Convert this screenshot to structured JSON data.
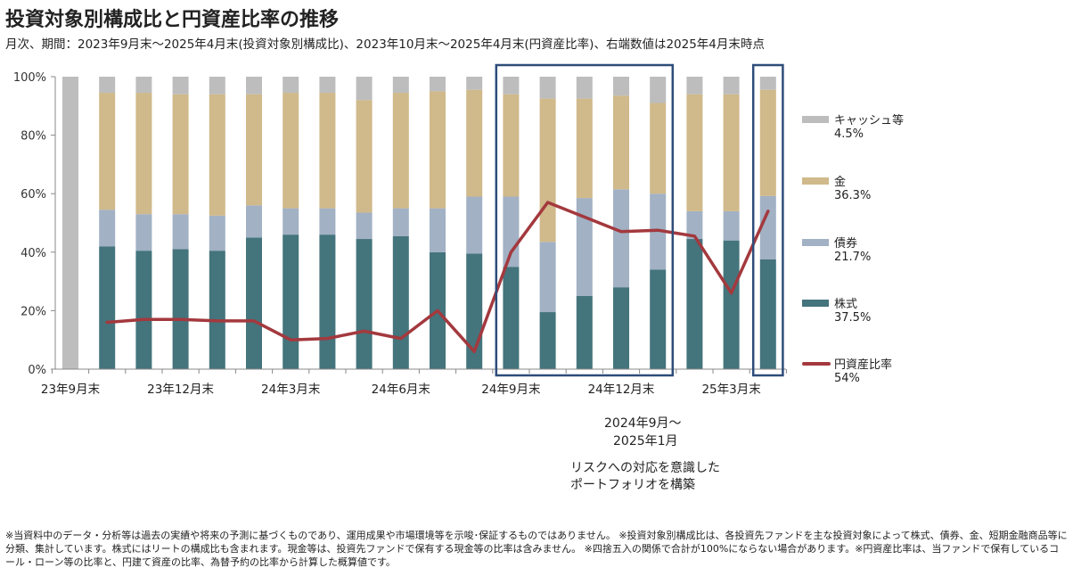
{
  "title": "投資対象別構成比と円資産比率の推移",
  "subtitle": "月次、期間：2023年9月末～2025年4月末(投資対象別構成比)、2023年10月末～2025年4月末(円資産比率)、右端数値は2025年4月末時点",
  "colors": {
    "cash": "#bdbdbd",
    "gold": "#d0b98a",
    "bond": "#a2b1c4",
    "stock": "#44747c",
    "yen_line": "#a3393e",
    "highlight_box": "#2e4d7a",
    "axis": "#888888"
  },
  "legend": [
    {
      "key": "cash",
      "label": "キャッシュ等",
      "value": "4.5%"
    },
    {
      "key": "gold",
      "label": "金",
      "value": "36.3%"
    },
    {
      "key": "bond",
      "label": "債券",
      "value": "21.7%"
    },
    {
      "key": "stock",
      "label": "株式",
      "value": "37.5%"
    },
    {
      "key": "yen_line",
      "label": "円資産比率",
      "value": "54%"
    }
  ],
  "annotation": {
    "period_line1": "2024年9月～",
    "period_line2": "2025年1月",
    "note_line1": "リスクへの対応を意識した",
    "note_line2": "ポートフォリオを構築"
  },
  "footnote": "※当資料中のデータ・分析等は過去の実績や将来の予測に基づくものであり、運用成果や市場環境等を示唆･保証するものではありません。 ※投資対象別構成比は、各投資先ファンドを主な投資対象によって株式、債券、金、短期金融商品等に分類、集計しています。株式にはリートの構成比も含まれます。現金等は、投資先ファンドで保有する現金等の比率は含みません。 ※四捨五入の関係で合計が100%にならない場合があります。※円資産比率は、当ファンドで保有しているコール・ローン等の比率と、円建て資産の比率、為替予約の比率から計算した概算値です。",
  "chart_data": {
    "type": "bar",
    "stacked": true,
    "categories": [
      "23年9月末",
      "23年10月末",
      "23年11月末",
      "23年12月末",
      "24年1月末",
      "24年2月末",
      "24年3月末",
      "24年4月末",
      "24年5月末",
      "24年6月末",
      "24年7月末",
      "24年8月末",
      "24年9月末",
      "24年10月末",
      "24年11月末",
      "24年12月末",
      "25年1月末",
      "25年2月末",
      "25年3月末",
      "25年4月末"
    ],
    "x_tick_labels": [
      "23年9月末",
      "23年12月末",
      "24年3月末",
      "24年6月末",
      "24年9月末",
      "24年12月末",
      "25年3月末"
    ],
    "x_tick_indices": [
      0,
      3,
      6,
      9,
      12,
      15,
      18
    ],
    "y_tick_labels": [
      "0%",
      "20%",
      "40%",
      "60%",
      "80%",
      "100%"
    ],
    "ylim": [
      0,
      100
    ],
    "series": [
      {
        "name": "株式",
        "key": "stock",
        "values": [
          0,
          42,
          40.5,
          41,
          40.5,
          45,
          46,
          46,
          44.5,
          45.5,
          40,
          39.5,
          35,
          19.5,
          25,
          28,
          34,
          44.5,
          44,
          37.5
        ]
      },
      {
        "name": "債券",
        "key": "bond",
        "values": [
          0,
          12.5,
          12.5,
          12,
          12,
          11,
          9,
          9,
          9,
          9.5,
          15,
          19.5,
          24,
          24,
          33.5,
          33.5,
          26,
          9.5,
          10,
          21.7
        ]
      },
      {
        "name": "金",
        "key": "gold",
        "values": [
          0,
          40,
          41.5,
          41,
          41.5,
          38,
          39.5,
          39.5,
          38.5,
          39.5,
          40,
          36.5,
          35,
          49,
          34,
          32,
          31,
          40,
          40,
          36.3
        ]
      },
      {
        "name": "キャッシュ等",
        "key": "cash",
        "values": [
          100,
          5.5,
          5.5,
          6,
          6,
          6,
          5.5,
          5.5,
          8,
          5.5,
          5,
          4.5,
          6,
          7.5,
          7.5,
          6.5,
          9,
          6,
          6,
          4.5
        ]
      },
      {
        "name": "円資産比率",
        "key": "yen_line",
        "type": "line",
        "values": [
          null,
          16,
          17,
          17,
          16.5,
          16.5,
          10,
          10.5,
          13,
          10.5,
          20,
          6,
          40,
          57,
          52,
          47,
          47.5,
          45.5,
          26,
          54
        ]
      }
    ],
    "highlight_ranges": [
      [
        "24年9月末",
        "25年1月末"
      ],
      [
        "25年4月末",
        "25年4月末"
      ]
    ],
    "grid": false,
    "legend_position": "right"
  }
}
